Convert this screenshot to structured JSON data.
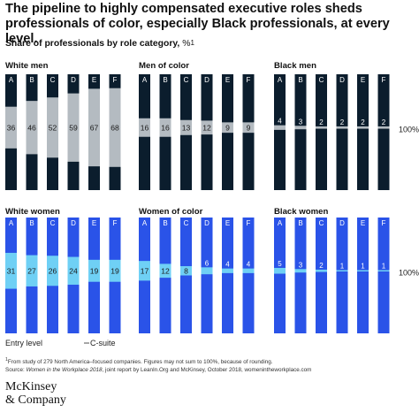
{
  "title": "The pipeline to highly compensated executive roles sheds professionals of color, especially Black professionals, at every level.",
  "subtitle": "Share of professionals by role category,",
  "subtitle_unit": "%",
  "subtitle_footnote_mark": "1",
  "footnote": {
    "mark": "1",
    "line1": "From study of 279 North America–focused companies. Figures may not sum to 100%, because of rounding.",
    "source_prefix": "Source: ",
    "source_italic": "Women in the Workplace 2018",
    "source_suffix": ", joint report by LeanIn.Org and McKinsey, October 2018, womenintheworkplace.com"
  },
  "logo": {
    "line1": "McKinsey",
    "line2": "& Company"
  },
  "colors": {
    "dark": "#0b1d2d",
    "dark_highlight": "#b4bbc1",
    "blue": "#2a53e8",
    "blue_highlight": "#6fd0f5",
    "label_light": "#ffffff",
    "label_dark": "#1a1a1a"
  },
  "chart_data": {
    "type": "bar",
    "categories": [
      "A",
      "B",
      "C",
      "D",
      "E",
      "F"
    ],
    "total_label": "100%",
    "axis_labels": {
      "left": "Entry level",
      "right": "C-suite"
    },
    "panels": [
      {
        "name": "White men",
        "values": [
          36,
          46,
          52,
          59,
          67,
          68
        ],
        "palette": "dark"
      },
      {
        "name": "Men of color",
        "values": [
          16,
          16,
          13,
          12,
          9,
          9
        ],
        "palette": "dark"
      },
      {
        "name": "Black men",
        "values": [
          4,
          3,
          2,
          2,
          2,
          2
        ],
        "palette": "dark"
      },
      {
        "name": "White women",
        "values": [
          31,
          27,
          26,
          24,
          19,
          19
        ],
        "palette": "blue"
      },
      {
        "name": "Women of color",
        "values": [
          17,
          12,
          8,
          6,
          4,
          4
        ],
        "palette": "blue"
      },
      {
        "name": "Black women",
        "values": [
          5,
          3,
          2,
          1,
          1,
          1
        ],
        "palette": "blue"
      }
    ]
  }
}
